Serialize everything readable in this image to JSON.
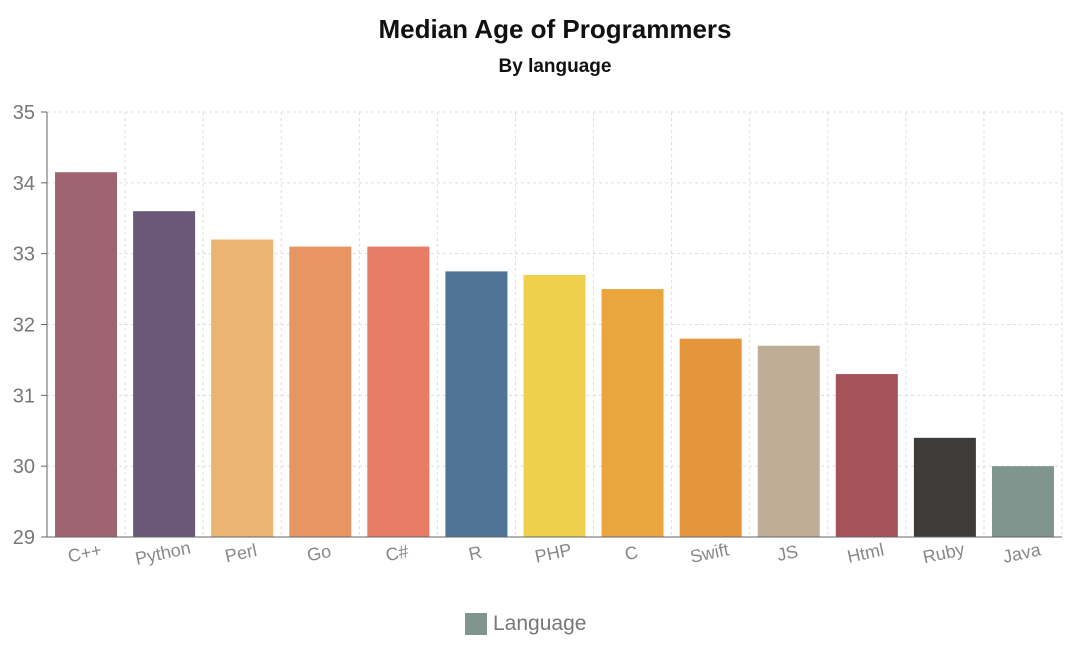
{
  "chart_data": {
    "type": "bar",
    "title": "Median Age of Programmers",
    "subtitle": "By language",
    "xlabel": "",
    "ylabel": "",
    "ylim": [
      29,
      35
    ],
    "yticks": [
      "29",
      "30",
      "31",
      "32",
      "33",
      "34",
      "35"
    ],
    "grid": true,
    "legend_position": "bottom-center",
    "categories": [
      "C++",
      "Python",
      "Perl",
      "Go",
      "C#",
      "R",
      "PHP",
      "C",
      "Swift",
      "JS",
      "Html",
      "Ruby",
      "Java"
    ],
    "series": [
      {
        "name": "Language",
        "values": [
          34.15,
          33.6,
          33.2,
          33.1,
          33.1,
          32.75,
          32.7,
          32.5,
          31.8,
          31.7,
          31.3,
          30.4,
          30.0
        ]
      }
    ],
    "colors": [
      "#9e6470",
      "#695878",
      "#ebb571",
      "#e79563",
      "#e77b65",
      "#4f7394",
      "#efd04d",
      "#eba53e",
      "#e5963c",
      "#c0ad97",
      "#a5525a",
      "#3e3c3a",
      "#7f958e"
    ],
    "legend_color": "#7f958e"
  }
}
